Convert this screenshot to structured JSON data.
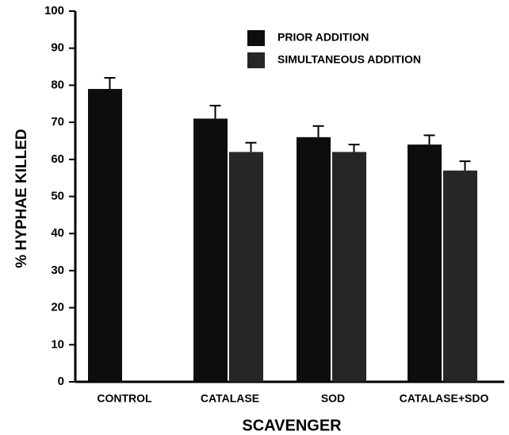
{
  "chart_data": {
    "type": "bar",
    "xlabel": "SCAVENGER",
    "ylabel": "% HYPHAE KILLED",
    "categories": [
      "CONTROL",
      "CATALASE",
      "SOD",
      "CATALASE+SDO"
    ],
    "series": [
      {
        "name": "PRIOR ADDITION",
        "color": "#0d0d0d",
        "values": [
          79,
          71,
          66,
          64
        ],
        "errors": [
          3,
          3.5,
          3,
          2.5
        ]
      },
      {
        "name": "SIMULTANEOUS ADDITION",
        "color": "#262626",
        "values": [
          null,
          62,
          62,
          57
        ],
        "errors": [
          null,
          2.5,
          2,
          2.5
        ]
      }
    ],
    "ylim": [
      0,
      100
    ],
    "yticks": [
      0,
      10,
      20,
      30,
      40,
      50,
      60,
      70,
      80,
      90,
      100
    ],
    "grid": false
  }
}
